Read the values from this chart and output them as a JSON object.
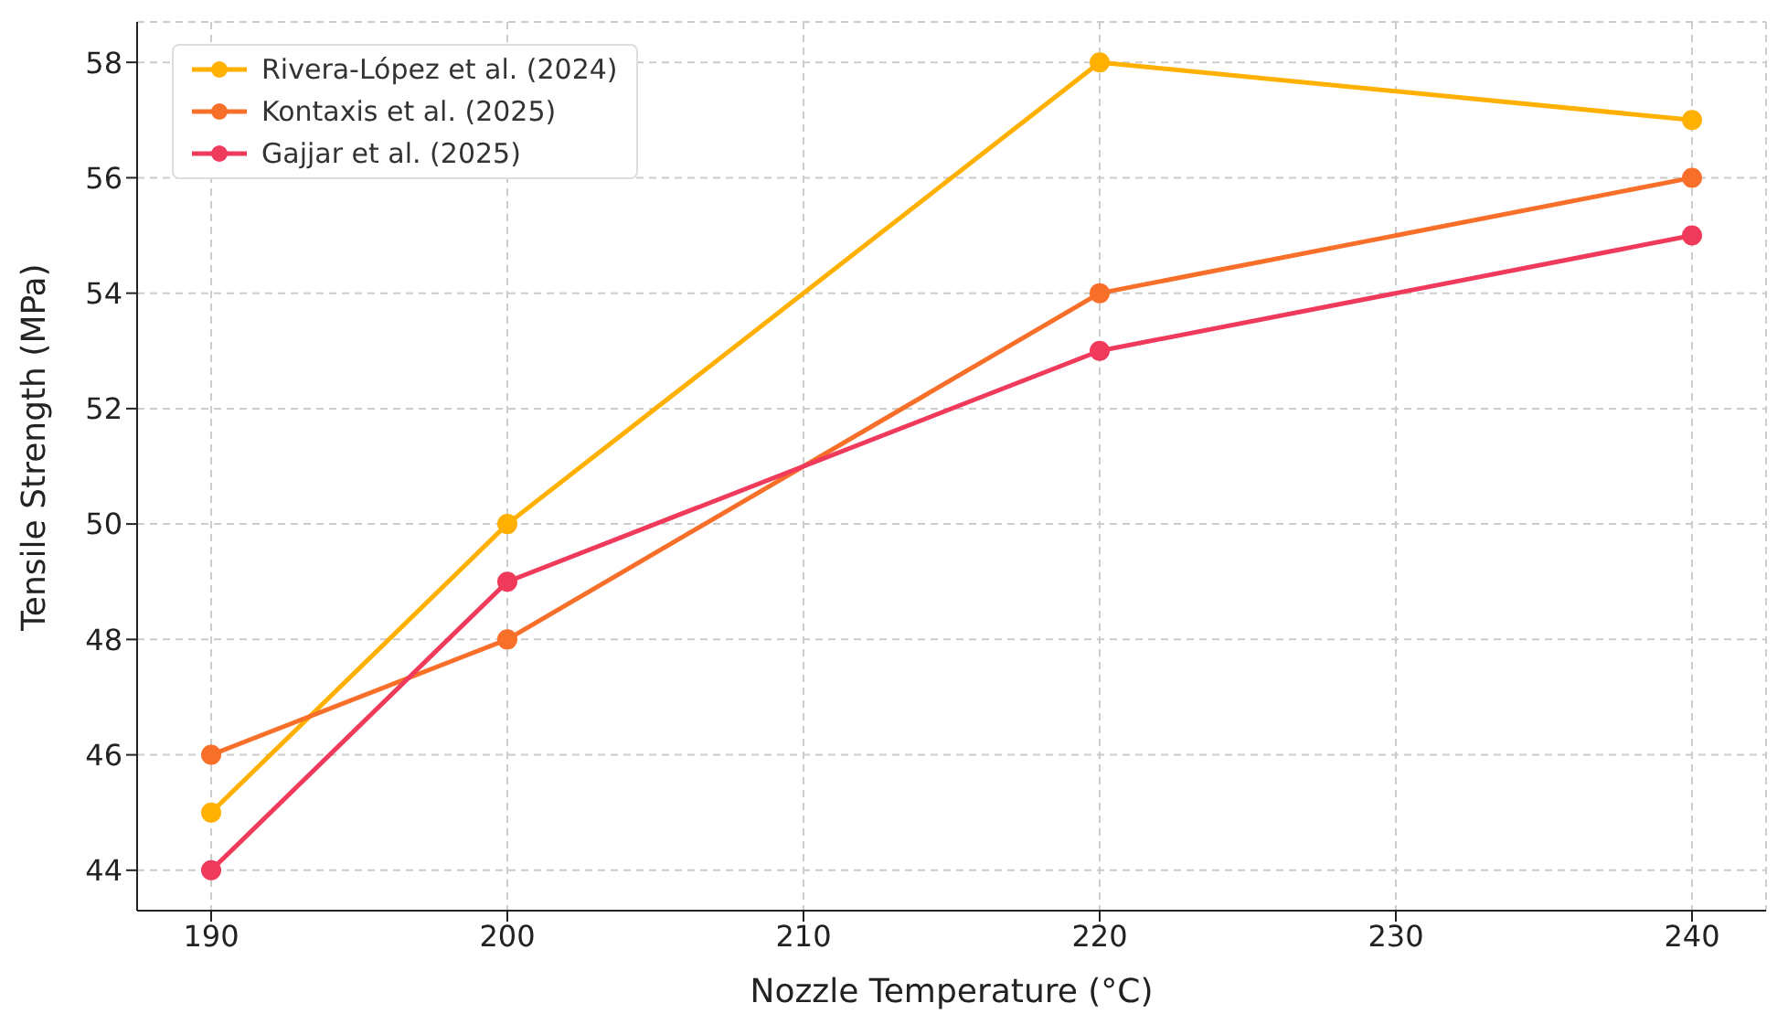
{
  "chart_data": {
    "type": "line",
    "xlabel": "Nozzle Temperature (°C)",
    "ylabel": "Tensile Strength (MPa)",
    "x": [
      190,
      200,
      220,
      240
    ],
    "series": [
      {
        "name": "Rivera-López et al. (2024)",
        "color": "#ffb000",
        "values": [
          45,
          50,
          58,
          57
        ]
      },
      {
        "name": "Kontaxis et al. (2025)",
        "color": "#f86f2a",
        "values": [
          46,
          48,
          54,
          56
        ]
      },
      {
        "name": "Gajjar et al. (2025)",
        "color": "#f03a5c",
        "values": [
          44,
          49,
          53,
          55
        ]
      }
    ],
    "xlim": [
      187.5,
      242.5
    ],
    "xticks": [
      190,
      200,
      210,
      220,
      230,
      240
    ],
    "ylim": [
      43.3,
      58.7
    ],
    "yticks": [
      44,
      46,
      48,
      50,
      52,
      54,
      56,
      58
    ],
    "grid": true,
    "legend": "top left",
    "marker": "circle",
    "line_style": "solid"
  }
}
